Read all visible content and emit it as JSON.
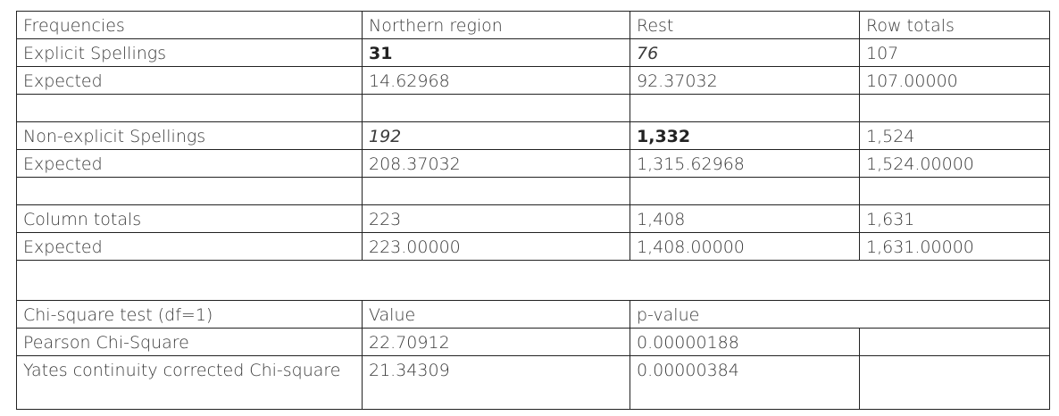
{
  "table": {
    "header": [
      "Frequencies",
      "Northern region",
      "Rest",
      "Row totals"
    ],
    "rows": [
      [
        "Explicit Spellings",
        "31",
        "76",
        "107"
      ],
      [
        "Expected",
        "14.62968",
        "92.37032",
        "107.00000"
      ],
      [
        "Non-explicit Spellings",
        "192",
        "1,332",
        "1,524"
      ],
      [
        "Expected",
        "208.37032",
        "1,315.62968",
        "1,524.00000"
      ],
      [
        "Column totals",
        "223",
        "1,408",
        "1,631"
      ],
      [
        "Expected",
        "223.00000",
        "1,408.00000",
        "1,631.00000"
      ]
    ]
  },
  "test": {
    "header": [
      "Chi-square test (df=1)",
      "Value",
      "p-value"
    ],
    "rows": [
      [
        "Pearson Chi-Square",
        "22.70912",
        "0.00000188"
      ],
      [
        "Yates continuity corrected Chi-square",
        "21.34309",
        "0.00000384"
      ]
    ]
  }
}
